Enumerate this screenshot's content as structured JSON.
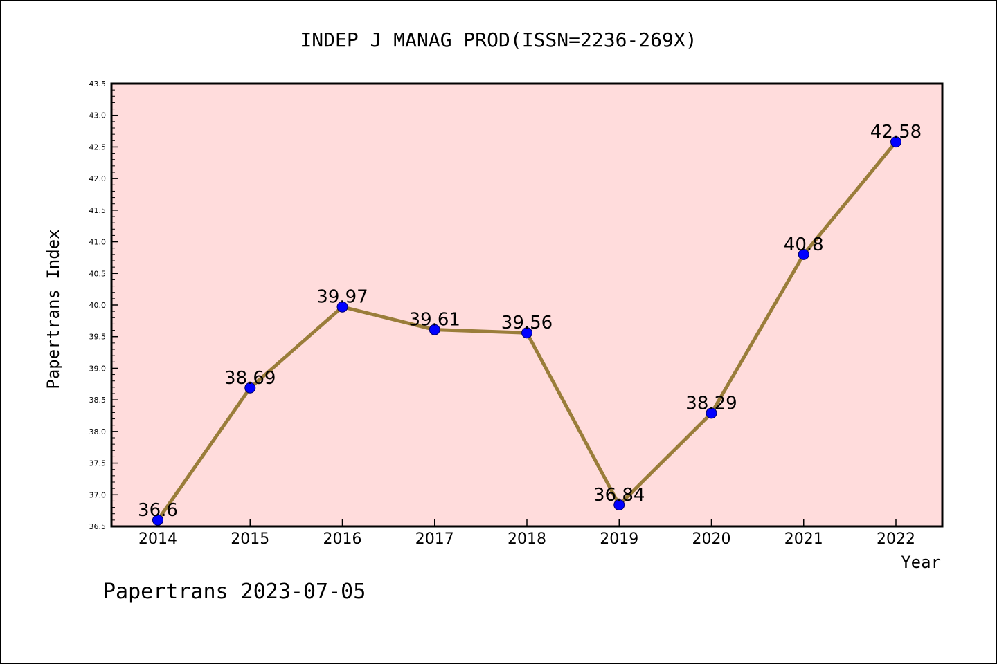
{
  "chart_data": {
    "type": "line",
    "title": "INDEP J MANAG PROD(ISSN=2236-269X)",
    "xlabel": "Year",
    "ylabel": "Papertrans Index",
    "categories": [
      "2014",
      "2015",
      "2016",
      "2017",
      "2018",
      "2019",
      "2020",
      "2021",
      "2022"
    ],
    "values": [
      36.6,
      38.69,
      39.97,
      39.61,
      39.56,
      36.84,
      38.29,
      40.8,
      42.58
    ],
    "data_labels": [
      "36.6",
      "38.69",
      "39.97",
      "39.61",
      "39.56",
      "36.84",
      "38.29",
      "40.8",
      "42.58"
    ],
    "ylim": [
      36.5,
      43.5
    ],
    "yticks": [
      "36.5",
      "37.0",
      "37.5",
      "38.0",
      "38.5",
      "39.0",
      "39.5",
      "40.0",
      "40.5",
      "41.0",
      "41.5",
      "42.0",
      "42.5",
      "43.0",
      "43.5"
    ],
    "grid": false,
    "legend": "none",
    "colors": {
      "plot_background": "#ffdcdc",
      "line": "#9a7d3a",
      "marker": "#0000ff"
    }
  },
  "footer": {
    "watermark": "Papertrans 2023-07-05"
  }
}
